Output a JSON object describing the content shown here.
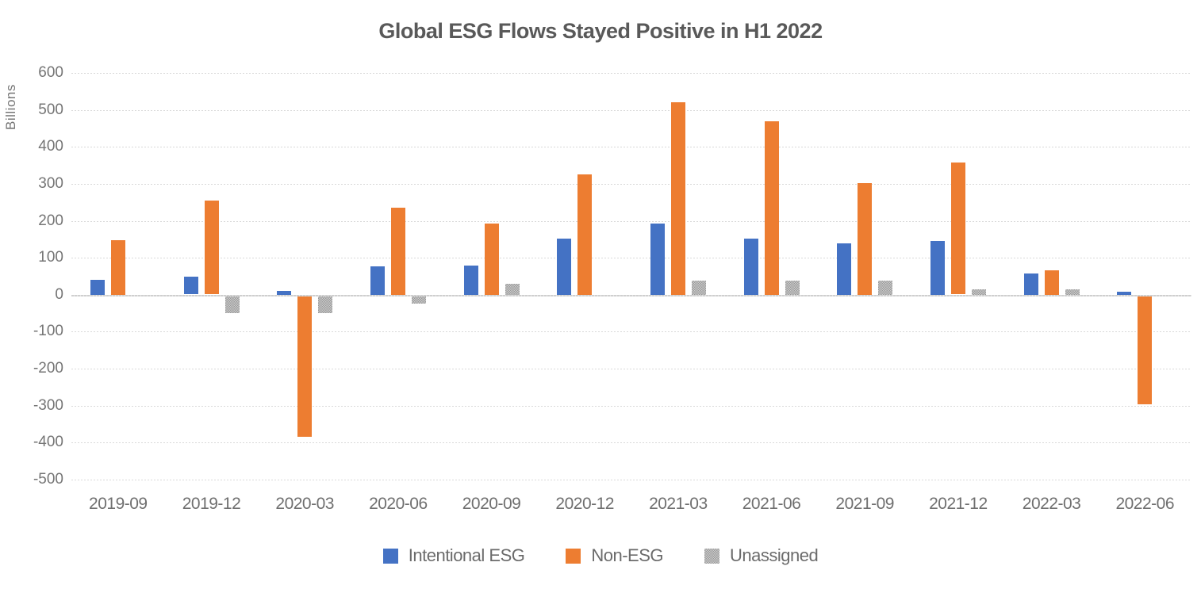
{
  "chart_data": {
    "type": "bar",
    "title": "Global ESG Flows Stayed Positive in H1 2022",
    "ylabel": "Billions",
    "xlabel": "",
    "categories": [
      "2019-09",
      "2019-12",
      "2020-03",
      "2020-06",
      "2020-09",
      "2020-12",
      "2021-03",
      "2021-06",
      "2021-09",
      "2021-12",
      "2022-03",
      "2022-06"
    ],
    "series": [
      {
        "name": "Intentional ESG",
        "color": "#4472C4",
        "fill": "solid",
        "values": [
          40,
          48,
          11,
          77,
          80,
          152,
          192,
          152,
          139,
          145,
          58,
          9
        ]
      },
      {
        "name": "Non-ESG",
        "color": "#ED7D31",
        "fill": "solid",
        "values": [
          148,
          254,
          -380,
          236,
          193,
          325,
          520,
          470,
          302,
          357,
          66,
          -292
        ]
      },
      {
        "name": "Unassigned",
        "color": "#A6A6A6",
        "fill": "checker-pattern",
        "values": [
          0,
          -45,
          -45,
          -20,
          29,
          0,
          38,
          38,
          39,
          14,
          14,
          0
        ]
      }
    ],
    "y_axis": {
      "min": -500,
      "max": 600,
      "step": 100,
      "ticks": [
        600,
        500,
        400,
        300,
        200,
        100,
        0,
        -100,
        -200,
        -300,
        -400,
        -500
      ]
    },
    "grid": true,
    "legend_position": "bottom",
    "colors": {
      "title_text": "#595959",
      "axis_text": "#757575",
      "gridline": "#D9D9D9",
      "background": "#FFFFFF"
    }
  }
}
